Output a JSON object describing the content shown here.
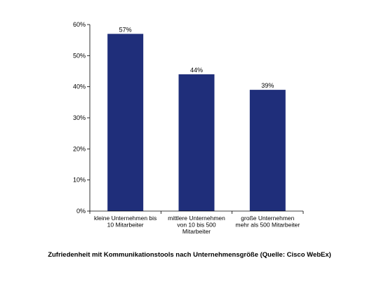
{
  "chart_data": {
    "type": "bar",
    "categories": [
      [
        "kleine Unternehmen bis",
        "10 Mitarbeiter"
      ],
      [
        "mittlere Unternehmen",
        "von 10 bis 500",
        "Mitarbeiter"
      ],
      [
        "große Unternehmen",
        "mehr als 500 Mitarbeiter"
      ]
    ],
    "values": [
      57,
      44,
      39
    ],
    "value_labels": [
      "57%",
      "44%",
      "39%"
    ],
    "ylim": [
      0,
      60
    ],
    "yticks": [
      0,
      10,
      20,
      30,
      40,
      50,
      60
    ],
    "ytick_labels": [
      "0%",
      "10%",
      "20%",
      "30%",
      "40%",
      "50%",
      "60%"
    ],
    "bar_color": "#1f2e7a",
    "grid": false,
    "caption": "Zufriedenheit mit Kommunikationstools nach Unternehmensgröße (Quelle: Cisco WebEx)"
  }
}
